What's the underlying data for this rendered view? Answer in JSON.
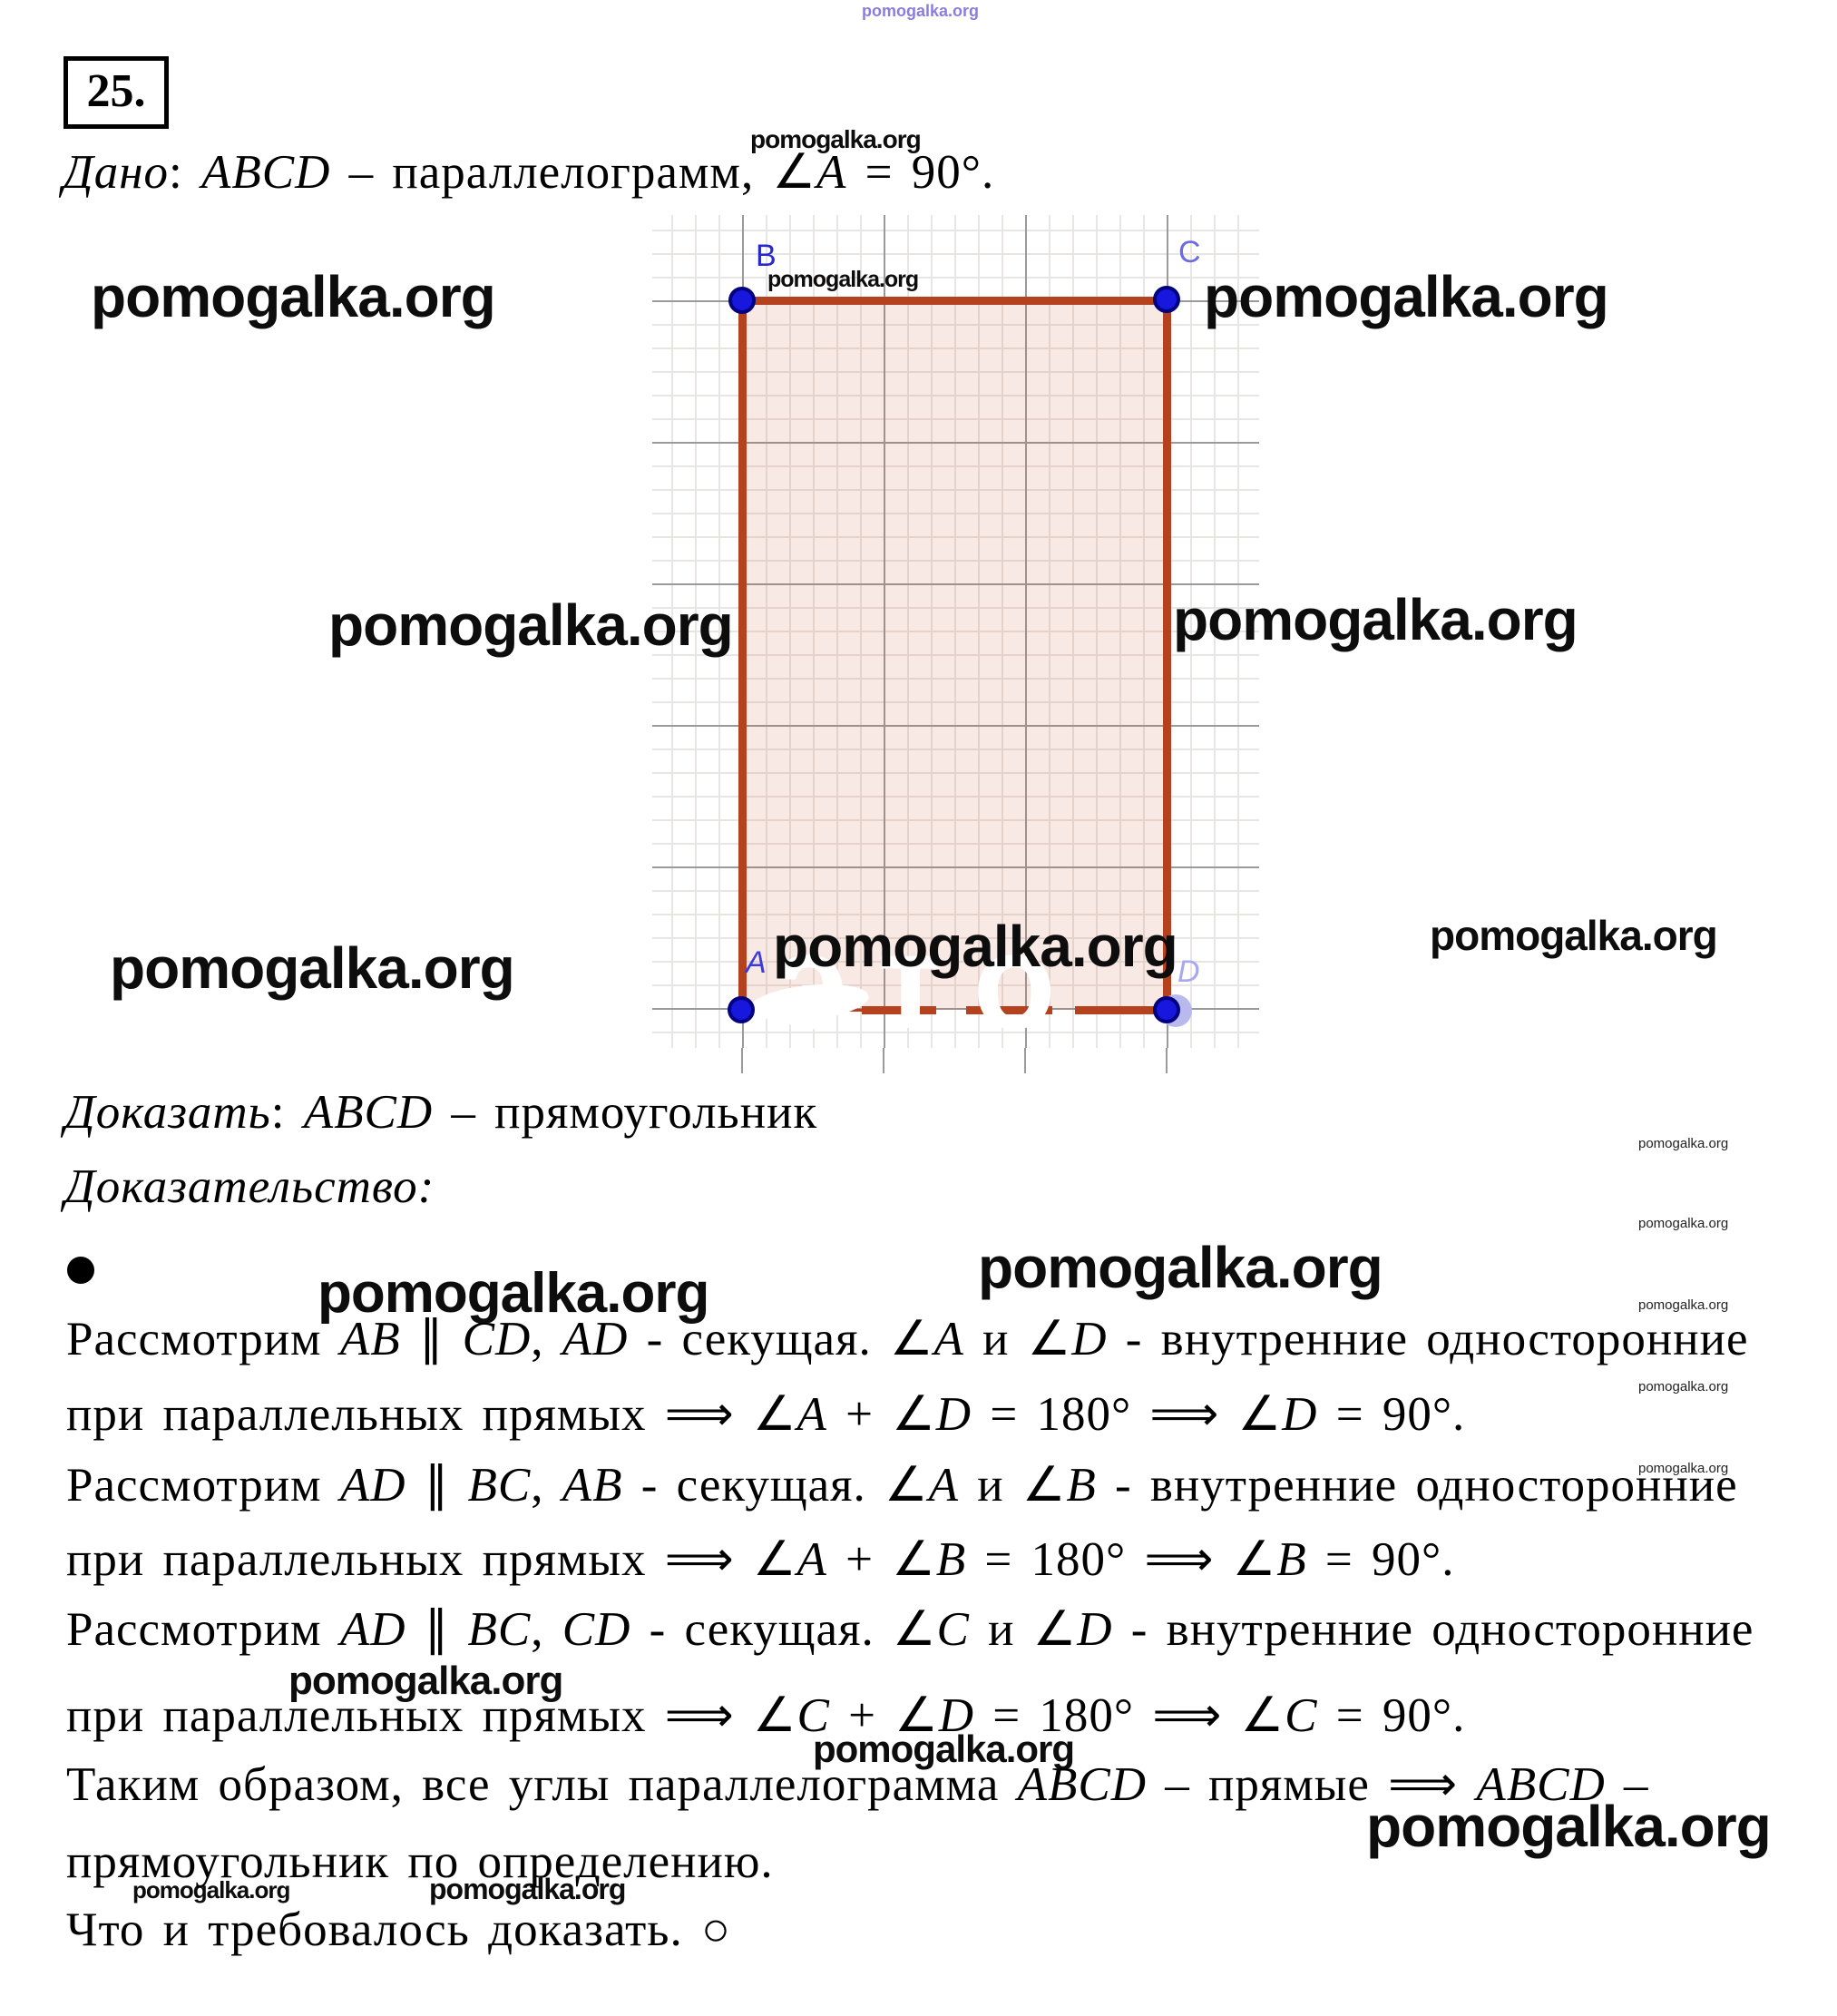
{
  "watermark": "pomogalka.org",
  "problem_number": "25.",
  "colors": {
    "figure_edge": "#b4421f",
    "figure_fill": "rgba(198,83,49,0.13)",
    "point_fill": "#1717dd",
    "point_border": "#000080",
    "label_blue": "#2828cd",
    "grid_major": "#9a9a9a",
    "grid_minor": "#e8e5e3",
    "watermark_purple": "#7668d8"
  },
  "figure": {
    "ghost_text": "это",
    "labels": {
      "a": "A",
      "b": "B",
      "c": "C",
      "d": "D"
    }
  },
  "lines": {
    "given": {
      "segments": [
        {
          "t": "Дано",
          "i": 1
        },
        {
          "t": ": "
        },
        {
          "t": "ABCD",
          "i": 1
        },
        {
          "t": " – параллелограмм, ∠"
        },
        {
          "t": "A",
          "i": 1
        },
        {
          "t": " = 90°."
        }
      ]
    },
    "prove": {
      "segments": [
        {
          "t": "Доказать",
          "i": 1
        },
        {
          "t": ": "
        },
        {
          "t": "ABCD",
          "i": 1
        },
        {
          "t": " – прямоугольник"
        }
      ]
    },
    "proof_heading": {
      "segments": [
        {
          "t": "Доказательство:",
          "i": 1
        }
      ]
    },
    "p1": {
      "segments": [
        {
          "t": "Рассмотрим "
        },
        {
          "t": "AB",
          "i": 1
        },
        {
          "t": " ∥ "
        },
        {
          "t": "CD",
          "i": 1
        },
        {
          "t": ", "
        },
        {
          "t": "AD",
          "i": 1
        },
        {
          "t": " - секущая. ∠"
        },
        {
          "t": "A",
          "i": 1
        },
        {
          "t": " и ∠"
        },
        {
          "t": "D",
          "i": 1
        },
        {
          "t": " - внутренние односторонние"
        }
      ]
    },
    "p2": {
      "segments": [
        {
          "t": "при параллельных прямых ⟹ ∠"
        },
        {
          "t": "A",
          "i": 1
        },
        {
          "t": " + ∠"
        },
        {
          "t": "D",
          "i": 1
        },
        {
          "t": " = 180° ⟹ ∠"
        },
        {
          "t": "D",
          "i": 1
        },
        {
          "t": " = 90°."
        }
      ]
    },
    "p3": {
      "segments": [
        {
          "t": "Рассмотрим "
        },
        {
          "t": "AD",
          "i": 1
        },
        {
          "t": " ∥ "
        },
        {
          "t": "BC",
          "i": 1
        },
        {
          "t": ", "
        },
        {
          "t": "AB",
          "i": 1
        },
        {
          "t": " - секущая. ∠"
        },
        {
          "t": "A",
          "i": 1
        },
        {
          "t": " и ∠"
        },
        {
          "t": "B",
          "i": 1
        },
        {
          "t": " - внутренние односторонние"
        }
      ]
    },
    "p4": {
      "segments": [
        {
          "t": "при параллельных прямых ⟹ ∠"
        },
        {
          "t": "A",
          "i": 1
        },
        {
          "t": " + ∠"
        },
        {
          "t": "B",
          "i": 1
        },
        {
          "t": " = 180° ⟹ ∠"
        },
        {
          "t": "B",
          "i": 1
        },
        {
          "t": " = 90°."
        }
      ]
    },
    "p5": {
      "segments": [
        {
          "t": "Рассмотрим "
        },
        {
          "t": "AD",
          "i": 1
        },
        {
          "t": " ∥ "
        },
        {
          "t": "BC",
          "i": 1
        },
        {
          "t": ", "
        },
        {
          "t": "CD",
          "i": 1
        },
        {
          "t": " - секущая. ∠"
        },
        {
          "t": "C",
          "i": 1
        },
        {
          "t": " и ∠"
        },
        {
          "t": "D",
          "i": 1
        },
        {
          "t": " - внутренние односторонние"
        }
      ]
    },
    "p6": {
      "segments": [
        {
          "t": "при параллельных прямых ⟹ ∠"
        },
        {
          "t": "C",
          "i": 1
        },
        {
          "t": " + ∠"
        },
        {
          "t": "D",
          "i": 1
        },
        {
          "t": " = 180° ⟹ ∠"
        },
        {
          "t": "C",
          "i": 1
        },
        {
          "t": " = 90°."
        }
      ]
    },
    "p7": {
      "segments": [
        {
          "t": "Таким образом, все углы параллелограмма "
        },
        {
          "t": "ABCD",
          "i": 1
        },
        {
          "t": " – прямые ⟹ "
        },
        {
          "t": "ABCD",
          "i": 1
        },
        {
          "t": " –"
        }
      ]
    },
    "p8": {
      "segments": [
        {
          "t": "прямоугольник по определению."
        }
      ]
    },
    "p9": {
      "segments": [
        {
          "t": "Что и требовалось доказать. ○"
        }
      ]
    }
  }
}
